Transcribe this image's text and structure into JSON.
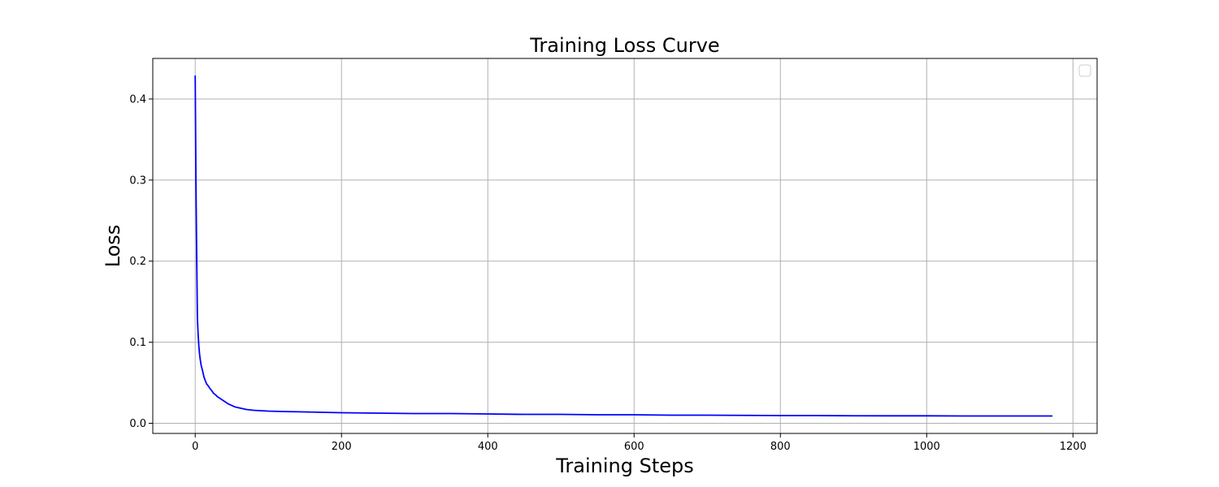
{
  "chart_data": {
    "type": "line",
    "title": "Training Loss Curve",
    "xlabel": "Training Steps",
    "ylabel": "Loss",
    "xlim": [
      -58,
      1233
    ],
    "ylim": [
      -0.0125,
      0.45
    ],
    "xticks": [
      0,
      200,
      400,
      600,
      800,
      1000,
      1200
    ],
    "yticks": [
      0.0,
      0.1,
      0.2,
      0.3,
      0.4
    ],
    "xtick_labels": [
      "0",
      "200",
      "400",
      "600",
      "800",
      "1000",
      "1200"
    ],
    "ytick_labels": [
      "0.0",
      "0.1",
      "0.2",
      "0.3",
      "0.4"
    ],
    "grid": true,
    "legend": {
      "placement": "top-right",
      "entries": []
    },
    "series": [
      {
        "color": "#0000ff",
        "x": [
          0,
          1,
          2,
          3,
          4,
          5,
          6,
          7,
          8,
          10,
          12,
          14,
          16,
          18,
          20,
          22,
          25,
          28,
          30,
          35,
          40,
          45,
          50,
          55,
          60,
          70,
          80,
          90,
          100,
          120,
          150,
          200,
          250,
          300,
          350,
          400,
          450,
          500,
          550,
          600,
          650,
          700,
          750,
          800,
          850,
          900,
          950,
          1000,
          1050,
          1100,
          1150,
          1172
        ],
        "y": [
          0.429,
          0.3,
          0.21,
          0.13,
          0.11,
          0.095,
          0.085,
          0.078,
          0.072,
          0.065,
          0.057,
          0.052,
          0.048,
          0.046,
          0.043,
          0.041,
          0.037,
          0.035,
          0.033,
          0.03,
          0.027,
          0.024,
          0.022,
          0.02,
          0.019,
          0.017,
          0.016,
          0.0155,
          0.015,
          0.0145,
          0.014,
          0.013,
          0.0125,
          0.012,
          0.012,
          0.0115,
          0.011,
          0.011,
          0.0105,
          0.0105,
          0.01,
          0.01,
          0.0098,
          0.0095,
          0.0095,
          0.0093,
          0.0092,
          0.0092,
          0.009,
          0.009,
          0.009,
          0.009
        ]
      }
    ]
  }
}
